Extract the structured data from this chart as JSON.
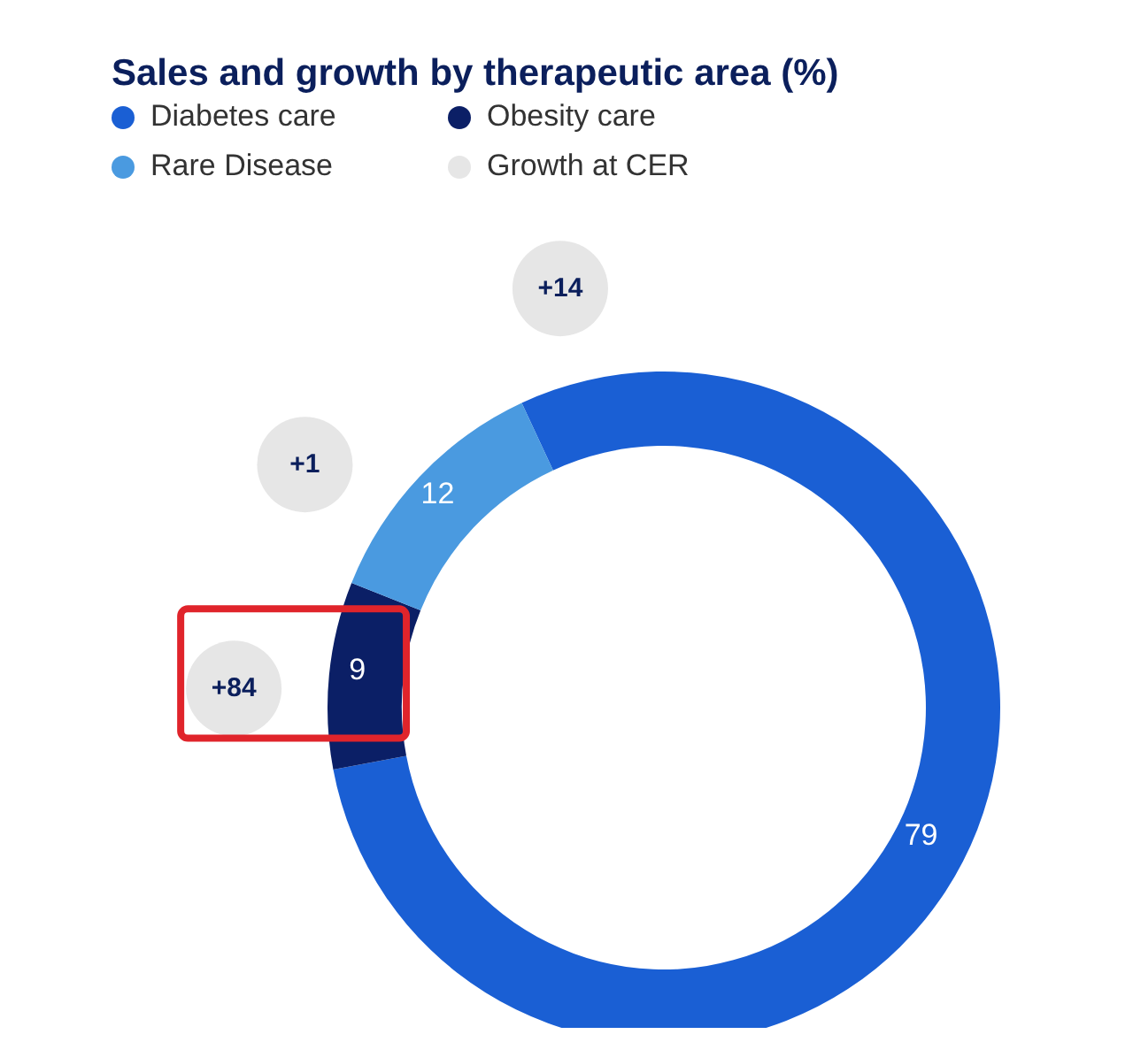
{
  "chart_data": {
    "type": "donut",
    "title": "Sales and growth by therapeutic area (%)",
    "categories": [
      "Diabetes care",
      "Obesity care",
      "Rare Disease",
      "Growth at CER"
    ],
    "values": [
      79,
      9,
      12,
      null
    ],
    "colors": [
      "#1a5fd4",
      "#0b1f66",
      "#4a9ae0",
      "#e6e6e6"
    ],
    "data_labels": true,
    "legend": "top left",
    "annotations": [
      {
        "text": "+14",
        "x": "Diabetes care"
      },
      {
        "text": "+84",
        "x": "Obesity care"
      },
      {
        "text": "+1",
        "x": "Rare Disease"
      }
    ]
  }
}
